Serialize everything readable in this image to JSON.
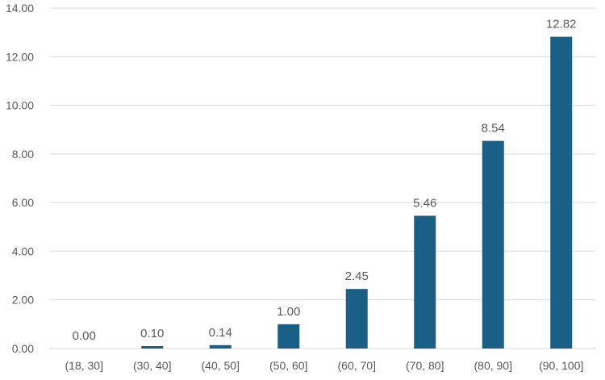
{
  "chart_data": {
    "type": "bar",
    "categories": [
      "(18, 30]",
      "(30, 40]",
      "(40, 50]",
      "(50, 60]",
      "(60, 70]",
      "(70, 80]",
      "(80, 90]",
      "(90, 100]"
    ],
    "values": [
      0.0,
      0.1,
      0.14,
      1.0,
      2.45,
      5.46,
      8.54,
      12.82
    ],
    "data_labels": [
      "0.00",
      "0.10",
      "0.14",
      "1.00",
      "2.45",
      "5.46",
      "8.54",
      "12.82"
    ],
    "y_ticks": [
      "0.00",
      "2.00",
      "4.00",
      "6.00",
      "8.00",
      "10.00",
      "12.00",
      "14.00"
    ],
    "ylim": [
      0,
      14
    ],
    "title": "",
    "xlabel": "",
    "ylabel": "",
    "grid": true,
    "bar_color": "#1a5f86",
    "grid_color": "#d9d9d9",
    "text_color": "#595959"
  }
}
